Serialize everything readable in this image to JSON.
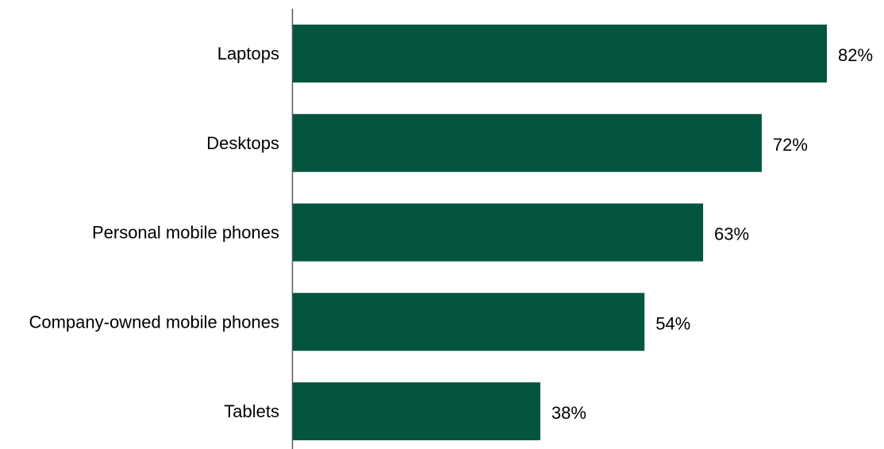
{
  "chart_data": {
    "type": "bar",
    "orientation": "horizontal",
    "categories": [
      "Laptops",
      "Desktops",
      "Personal mobile phones",
      "Company-owned mobile phones",
      "Tablets"
    ],
    "values": [
      82,
      72,
      63,
      54,
      38
    ],
    "value_labels": [
      "82%",
      "72%",
      "63%",
      "54%",
      "38%"
    ],
    "unit": "%",
    "xlim": [
      0,
      82
    ],
    "title": "",
    "xlabel": "",
    "ylabel": "",
    "grid": false,
    "legend": "none",
    "colors": {
      "bar": "#03553f",
      "axis": "#595959",
      "text": "#000000"
    }
  }
}
